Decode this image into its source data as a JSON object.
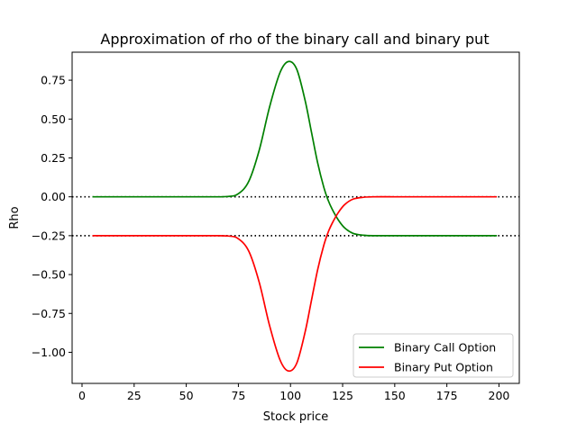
{
  "chart_data": {
    "type": "line",
    "title": "Approximation of rho of the binary call and binary put",
    "xlabel": "Stock price",
    "ylabel": "Rho",
    "xlim": [
      -4.75,
      209.75
    ],
    "ylim": [
      -1.2,
      0.93
    ],
    "xticks": [
      0,
      25,
      50,
      75,
      100,
      125,
      150,
      175,
      200
    ],
    "xtick_labels": [
      "0",
      "25",
      "50",
      "75",
      "100",
      "125",
      "150",
      "175",
      "200"
    ],
    "yticks": [
      0.75,
      0.5,
      0.25,
      0.0,
      -0.25,
      -0.5,
      -0.75,
      -1.0
    ],
    "ytick_labels": [
      "0.75",
      "0.50",
      "0.25",
      "0.00",
      "−0.25",
      "−0.50",
      "−0.75",
      "−1.00"
    ],
    "grid": false,
    "legend_position": "bottom-right",
    "reference_lines": [
      {
        "y": 0.0,
        "style": "dotted",
        "color": "#000000"
      },
      {
        "y": -0.25,
        "style": "dotted",
        "color": "#000000"
      }
    ],
    "x": [
      5,
      20,
      40,
      60,
      70,
      75,
      80,
      85,
      90,
      95,
      99,
      103,
      107,
      110,
      113,
      116,
      118,
      120,
      123,
      126,
      130,
      135,
      140,
      150,
      160,
      180,
      199
    ],
    "series": [
      {
        "name": "Binary Call Option",
        "color": "#008000",
        "values": [
          0.0,
          0.0,
          0.0,
          0.0,
          0.002,
          0.02,
          0.1,
          0.3,
          0.58,
          0.8,
          0.87,
          0.82,
          0.62,
          0.42,
          0.22,
          0.06,
          -0.02,
          -0.08,
          -0.15,
          -0.2,
          -0.235,
          -0.247,
          -0.25,
          -0.25,
          -0.25,
          -0.25,
          -0.25
        ]
      },
      {
        "name": "Binary Put Option",
        "color": "#ff0000",
        "values": [
          -0.25,
          -0.25,
          -0.25,
          -0.25,
          -0.252,
          -0.27,
          -0.35,
          -0.55,
          -0.83,
          -1.05,
          -1.12,
          -1.07,
          -0.87,
          -0.67,
          -0.47,
          -0.31,
          -0.23,
          -0.17,
          -0.1,
          -0.05,
          -0.015,
          -0.003,
          0.0,
          0.0,
          0.0,
          0.0,
          0.0
        ]
      }
    ]
  }
}
